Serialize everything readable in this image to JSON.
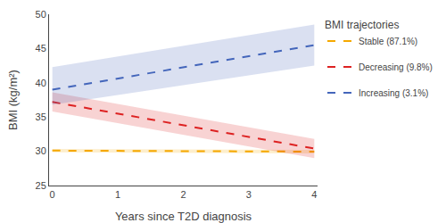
{
  "chart_data": {
    "type": "line",
    "xlabel": "Years since T2D diagnosis",
    "ylabel": "BMI (kg/m²)",
    "xlim": [
      -0.05,
      4.05
    ],
    "ylim": [
      25,
      50
    ],
    "xticks": [
      0,
      1,
      2,
      3,
      4
    ],
    "yticks": [
      25,
      30,
      35,
      40,
      45,
      50
    ],
    "grid": false,
    "legend": "upper right",
    "legend_title": "BMI trajectories",
    "line_style": "dashed",
    "x": [
      0,
      4
    ],
    "series": [
      {
        "name": "Stable (87.1%)",
        "color": "#F5A800",
        "values": [
          30.1,
          29.95
        ],
        "ci_lower": [
          29.85,
          29.7
        ],
        "ci_upper": [
          30.35,
          30.2
        ]
      },
      {
        "name": "Decreasing (9.8%)",
        "color": "#DD2222",
        "values": [
          37.2,
          30.4
        ],
        "ci_lower": [
          35.8,
          29.0
        ],
        "ci_upper": [
          38.6,
          31.8
        ]
      },
      {
        "name": "Increasing (3.1%)",
        "color": "#4466BB",
        "values": [
          39.0,
          45.5
        ],
        "ci_lower": [
          36.8,
          42.5
        ],
        "ci_upper": [
          42.3,
          48.5
        ]
      }
    ]
  }
}
